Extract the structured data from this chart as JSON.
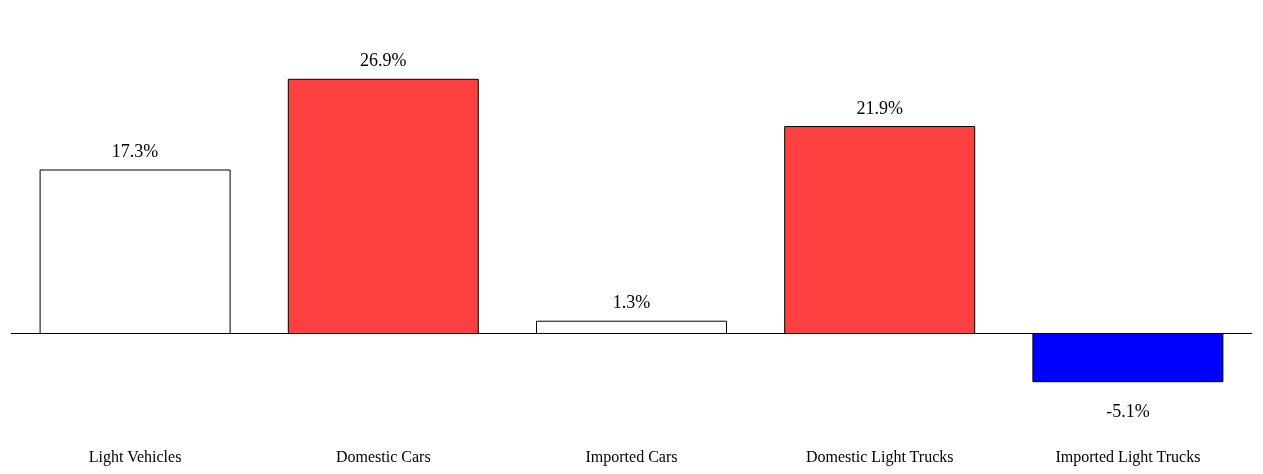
{
  "chart_data": {
    "type": "bar",
    "categories": [
      "Light Vehicles",
      "Domestic Cars",
      "Imported Cars",
      "Domestic Light Trucks",
      "Imported Light Trucks"
    ],
    "values": [
      17.3,
      26.9,
      1.3,
      21.9,
      -5.1
    ],
    "value_labels": [
      "17.3%",
      "26.9%",
      "1.3%",
      "21.9%",
      "-5.1%"
    ],
    "colors": [
      "#ffffff",
      "#ff4040",
      "#ffffff",
      "#ff4040",
      "#0000ff"
    ],
    "grid": false,
    "legend": false
  }
}
